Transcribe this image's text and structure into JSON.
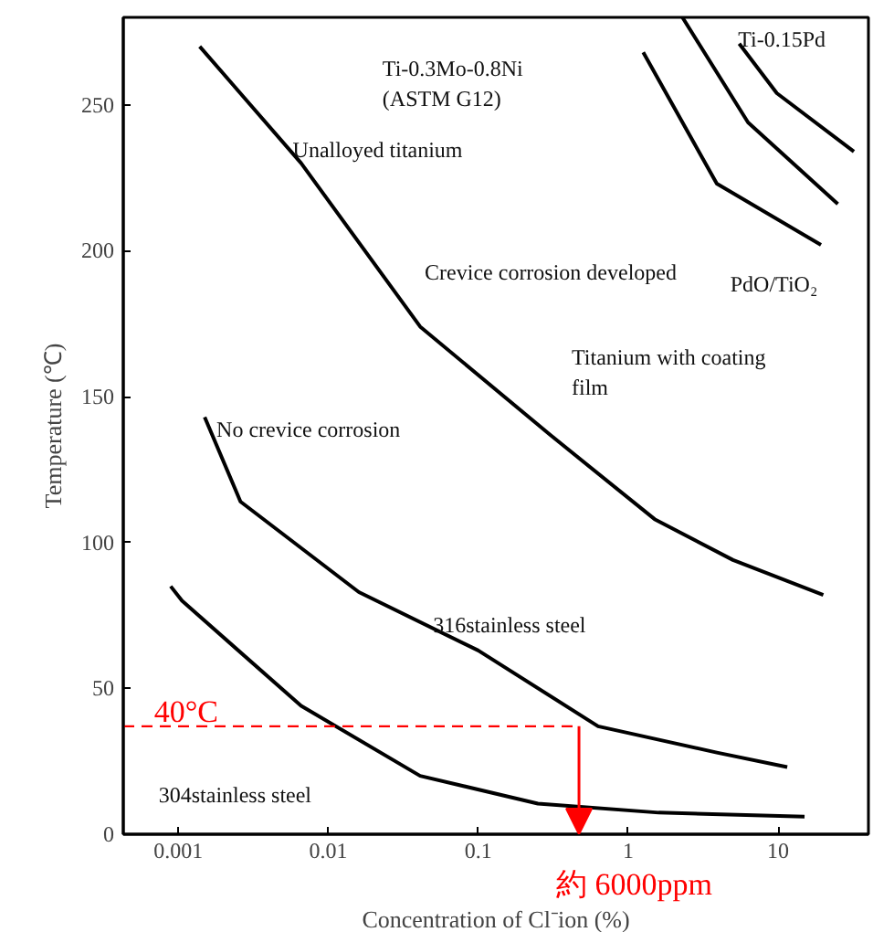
{
  "chart_data": {
    "type": "line",
    "xlabel": "Concentration of Cl⁻ion (%)",
    "ylabel": "Temperature (℃)",
    "log": "x",
    "grid": false,
    "xlim": [
      0.00043,
      40
    ],
    "xticks": [
      0.001,
      0.01,
      0.1,
      1,
      10
    ],
    "ylim": [
      0,
      280
    ],
    "yticks": [
      0,
      50,
      100,
      150,
      200,
      250
    ],
    "series": [
      {
        "color": "#000000",
        "x": [
          0.00139,
          0.0066,
          0.041,
          0.3,
          1.5,
          5,
          20
        ],
        "values": [
          270,
          230,
          174,
          137,
          108,
          94,
          82
        ]
      },
      {
        "color": "#000000",
        "x": [
          0.0015,
          0.0026,
          0.016,
          0.1,
          0.63,
          3.9,
          11.5
        ],
        "values": [
          143,
          114,
          83,
          63,
          37,
          28,
          23
        ]
      },
      {
        "color": "#000000",
        "x": [
          0.00089,
          0.00106,
          0.0066,
          0.041,
          0.25,
          1.6,
          15
        ],
        "values": [
          85,
          80,
          44,
          20,
          10.5,
          7.4,
          6
        ]
      },
      {
        "color": "#000000",
        "x": [
          1.26,
          3.9,
          19.3
        ],
        "values": [
          268,
          223,
          202
        ]
      },
      {
        "color": "#000000",
        "x": [
          2.3,
          6.3,
          25
        ],
        "values": [
          280,
          244,
          216
        ]
      },
      {
        "color": "#000000",
        "x": [
          5.5,
          9.8,
          32
        ],
        "values": [
          271,
          254,
          234
        ]
      },
      {
        "color": "#ff0000",
        "line_style": "dashed",
        "x": [
          0.00043,
          0.47
        ],
        "values": [
          37,
          37
        ]
      }
    ],
    "annotations": [
      "Unalloyed titanium",
      "Ti-0.3Mo-0.8Ni\n(ASTM G12)",
      "Ti-0.15Pd",
      "PdO/TiO₂",
      "Titanium with coating\nfilm",
      "Crevice corrosion developed",
      "No crevice corrosion",
      "316stainless steel",
      "304stainless steel",
      "40°C",
      "約 6000ppm"
    ]
  }
}
